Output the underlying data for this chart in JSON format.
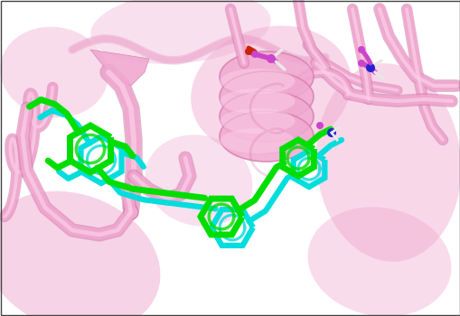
{
  "figsize": [
    5.1,
    3.5
  ],
  "dpi": 100,
  "background_color": "#ffffff",
  "protein_color": "#f0a8d0",
  "protein_shadow": "#d880b0",
  "protein_light": "#fcd0e8",
  "homologous_ligand_color": "#00dd00",
  "redocked_ligand_color": "#00dddd",
  "ligand_green_dark": "#009900",
  "ligand_cyan_dark": "#009999",
  "white_bond": "#e8e8e8",
  "magenta_atom": "#cc44cc",
  "red_atom": "#cc2200",
  "blue_atom": "#2222cc",
  "dark_pink": "#c060a0"
}
